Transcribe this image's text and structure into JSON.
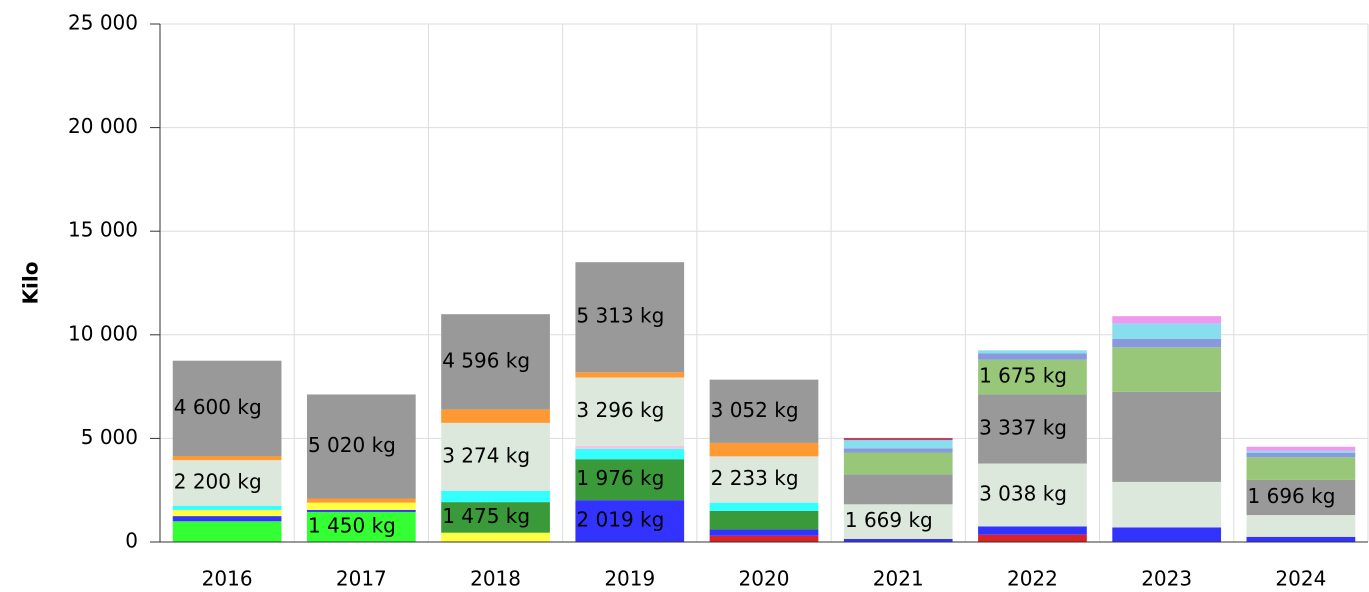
{
  "chart_data": {
    "type": "bar",
    "stacked": true,
    "ylabel": "Kilo",
    "categories": [
      "2016",
      "2017",
      "2018",
      "2019",
      "2020",
      "2021",
      "2022",
      "2023",
      "2024"
    ],
    "ylim": [
      0,
      25000
    ],
    "yticks": [
      0,
      {
        "value": 5000,
        "label": "5 000"
      },
      {
        "value": 10000,
        "label": "10 000"
      },
      {
        "value": 15000,
        "label": "15 000"
      },
      {
        "value": 20000,
        "label": "20 000"
      },
      {
        "value": 25000,
        "label": "25 000"
      }
    ],
    "grid": true,
    "series": [
      {
        "color": "#dd2222",
        "values": [
          0,
          0,
          0,
          0,
          300,
          0,
          350,
          0,
          0
        ]
      },
      {
        "color": "#33ff33",
        "values": [
          1000,
          1450,
          0,
          0,
          0,
          0,
          0,
          0,
          0
        ],
        "value_labels": [
          null,
          "1 450 kg",
          null,
          null,
          null,
          null,
          null,
          null,
          null
        ]
      },
      {
        "color": "#3333ff",
        "values": [
          250,
          100,
          0,
          2019,
          300,
          150,
          400,
          700,
          250
        ],
        "value_labels": [
          null,
          null,
          null,
          "2 019 kg",
          null,
          null,
          null,
          null,
          null
        ]
      },
      {
        "color": "#ffff44",
        "values": [
          300,
          350,
          450,
          0,
          0,
          0,
          0,
          0,
          0
        ]
      },
      {
        "color": "#3a9a3a",
        "values": [
          0,
          0,
          1475,
          1976,
          900,
          0,
          0,
          0,
          0
        ],
        "value_labels": [
          null,
          null,
          "1 475 kg",
          "1 976 kg",
          null,
          null,
          null,
          null,
          null
        ]
      },
      {
        "color": "#33ffff",
        "values": [
          200,
          0,
          550,
          500,
          400,
          0,
          0,
          0,
          0
        ]
      },
      {
        "color": "#f4c4e4",
        "values": [
          0,
          0,
          0,
          150,
          0,
          0,
          0,
          0,
          0
        ]
      },
      {
        "color": "#dde8dd",
        "values": [
          2200,
          0,
          3274,
          3296,
          2233,
          1669,
          3038,
          2200,
          1050
        ],
        "value_labels": [
          "2 200 kg",
          null,
          "3 274 kg",
          "3 296 kg",
          "2 233 kg",
          "1 669 kg",
          "3 038 kg",
          null,
          null
        ]
      },
      {
        "color": "#ff9933",
        "values": [
          200,
          200,
          650,
          250,
          650,
          0,
          0,
          0,
          0
        ]
      },
      {
        "color": "#999999",
        "values": [
          4600,
          5020,
          4596,
          5313,
          3052,
          1450,
          3337,
          4350,
          1696
        ],
        "value_labels": [
          "4 600 kg",
          "5 020 kg",
          "4 596 kg",
          "5 313 kg",
          "3 052 kg",
          null,
          "3 337 kg",
          null,
          "1 696 kg"
        ]
      },
      {
        "color": "#99c77a",
        "values": [
          0,
          0,
          0,
          0,
          0,
          1050,
          1675,
          2150,
          1100
        ],
        "value_labels": [
          null,
          null,
          null,
          null,
          null,
          null,
          "1 675 kg",
          null,
          null
        ]
      },
      {
        "color": "#8899dd",
        "values": [
          0,
          0,
          0,
          0,
          0,
          200,
          300,
          400,
          200
        ]
      },
      {
        "color": "#88ddee",
        "values": [
          0,
          0,
          0,
          0,
          0,
          400,
          150,
          750,
          100
        ]
      },
      {
        "color": "#bb4466",
        "values": [
          0,
          0,
          0,
          0,
          0,
          100,
          0,
          0,
          0
        ]
      },
      {
        "color": "#ee99ee",
        "values": [
          0,
          0,
          0,
          0,
          0,
          0,
          0,
          350,
          200
        ]
      }
    ]
  }
}
